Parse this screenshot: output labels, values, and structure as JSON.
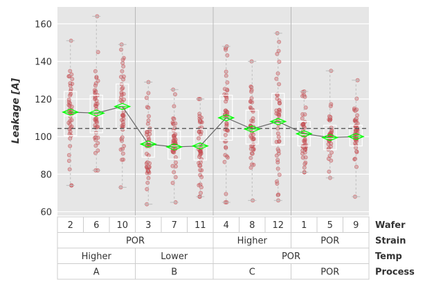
{
  "chart_data": {
    "type": "box",
    "title": "",
    "xlabel": "",
    "ylabel": "Leakage [A]",
    "ylim": [
      58,
      169
    ],
    "yticks": [
      60,
      80,
      100,
      120,
      140,
      160
    ],
    "grid": true,
    "grand_mean": 104.3,
    "groups": [
      {
        "wafer": "2",
        "q1": 100.5,
        "median": 111,
        "q3": 124,
        "min": 74,
        "max": 151,
        "mean": 113
      },
      {
        "wafer": "6",
        "q1": 102,
        "median": 111,
        "q3": 122,
        "min": 82,
        "max": 164,
        "mean": 112.5
      },
      {
        "wafer": "10",
        "q1": 104,
        "median": 114,
        "q3": 128,
        "min": 73,
        "max": 149,
        "mean": 116
      },
      {
        "wafer": "3",
        "q1": 89,
        "median": 97,
        "q3": 104,
        "min": 64,
        "max": 129,
        "mean": 96
      },
      {
        "wafer": "7",
        "q1": 88,
        "median": 95,
        "q3": 103,
        "min": 65,
        "max": 125,
        "mean": 94.5
      },
      {
        "wafer": "11",
        "q1": 87.5,
        "median": 95,
        "q3": 104,
        "min": 68,
        "max": 120,
        "mean": 95
      },
      {
        "wafer": "4",
        "q1": 98,
        "median": 110,
        "q3": 122,
        "min": 65,
        "max": 148,
        "mean": 110
      },
      {
        "wafer": "8",
        "q1": 96,
        "median": 104,
        "q3": 114,
        "min": 66,
        "max": 140,
        "mean": 104
      },
      {
        "wafer": "12",
        "q1": 95.5,
        "median": 107,
        "q3": 123,
        "min": 66,
        "max": 155,
        "mean": 108
      },
      {
        "wafer": "1",
        "q1": 95,
        "median": 101,
        "q3": 108,
        "min": 81,
        "max": 124,
        "mean": 101.5
      },
      {
        "wafer": "5",
        "q1": 93,
        "median": 99,
        "q3": 106,
        "min": 78,
        "max": 135,
        "mean": 99.5
      },
      {
        "wafer": "9",
        "q1": 95,
        "median": 100,
        "q3": 106,
        "min": 68,
        "max": 130,
        "mean": 100
      }
    ],
    "levels": [
      {
        "name": "Wafer",
        "cells": [
          {
            "label": "2",
            "span": 1
          },
          {
            "label": "6",
            "span": 1
          },
          {
            "label": "10",
            "span": 1
          },
          {
            "label": "3",
            "span": 1
          },
          {
            "label": "7",
            "span": 1
          },
          {
            "label": "11",
            "span": 1
          },
          {
            "label": "4",
            "span": 1
          },
          {
            "label": "8",
            "span": 1
          },
          {
            "label": "12",
            "span": 1
          },
          {
            "label": "1",
            "span": 1
          },
          {
            "label": "5",
            "span": 1
          },
          {
            "label": "9",
            "span": 1
          }
        ]
      },
      {
        "name": "Strain",
        "cells": [
          {
            "label": "POR",
            "span": 6
          },
          {
            "label": "Higher",
            "span": 3
          },
          {
            "label": "POR",
            "span": 3
          }
        ]
      },
      {
        "name": "Temp",
        "cells": [
          {
            "label": "Higher",
            "span": 3
          },
          {
            "label": "Lower",
            "span": 3
          },
          {
            "label": "POR",
            "span": 6
          }
        ]
      },
      {
        "name": "Process",
        "cells": [
          {
            "label": "A",
            "span": 3
          },
          {
            "label": "B",
            "span": 3
          },
          {
            "label": "C",
            "span": 3
          },
          {
            "label": "POR",
            "span": 3
          }
        ]
      }
    ],
    "colors": {
      "background": "#e6e6e6",
      "grid": "#ffffff",
      "points": "#c44e52",
      "diamond": "#00ff00",
      "box": "#ffffff",
      "mean_line": "#666666",
      "grand_mean_line": "#555555",
      "separator": "#b8b8b8"
    }
  }
}
